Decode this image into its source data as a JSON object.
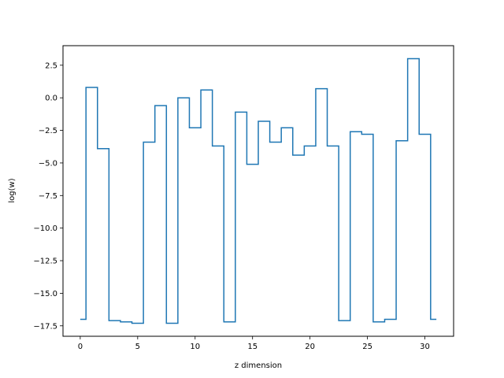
{
  "chart_data": {
    "type": "line",
    "drawstyle": "steps-mid",
    "title": "",
    "xlabel": "z dimension",
    "ylabel": "log(w)",
    "xlim": [
      -1.5,
      32.5
    ],
    "ylim": [
      -18.3,
      4.0
    ],
    "xticks": [
      0,
      5,
      10,
      15,
      20,
      25,
      30
    ],
    "xtick_labels": [
      "0",
      "5",
      "10",
      "15",
      "20",
      "25",
      "30"
    ],
    "yticks": [
      2.5,
      0.0,
      -2.5,
      -5.0,
      -7.5,
      -10.0,
      -12.5,
      -15.0,
      -17.5
    ],
    "ytick_labels": [
      "2.5",
      "0.0",
      "−2.5",
      "−5.0",
      "−7.5",
      "−10.0",
      "−12.5",
      "−15.0",
      "−17.5"
    ],
    "grid": false,
    "color": "#1f77b4",
    "x": [
      0,
      1,
      2,
      3,
      4,
      5,
      6,
      7,
      8,
      9,
      10,
      11,
      12,
      13,
      14,
      15,
      16,
      17,
      18,
      19,
      20,
      21,
      22,
      23,
      24,
      25,
      26,
      27,
      28,
      29,
      30,
      31
    ],
    "values": [
      -17.0,
      0.8,
      -3.9,
      -17.1,
      -17.2,
      -17.3,
      -3.4,
      -0.6,
      -17.3,
      0.0,
      -2.3,
      0.6,
      -3.7,
      -17.2,
      -1.1,
      -5.1,
      -1.8,
      -3.4,
      -2.3,
      -4.4,
      -3.7,
      0.7,
      -3.7,
      -17.1,
      -2.6,
      -2.8,
      -17.2,
      -17.0,
      -3.3,
      3.0,
      -2.8,
      -17.0
    ]
  }
}
